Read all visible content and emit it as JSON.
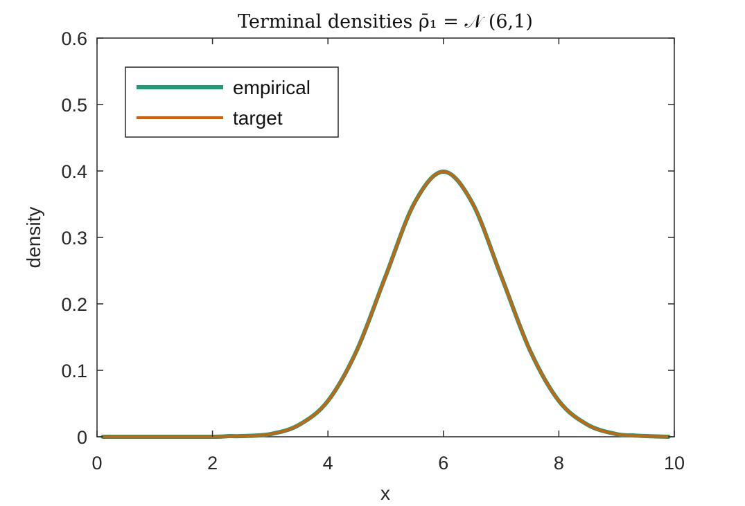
{
  "chart_data": {
    "type": "line",
    "title": "Terminal densities ρ̄₁ = 𝒩 (6,1)",
    "xlabel": "x",
    "ylabel": "density",
    "xlim": [
      0,
      10
    ],
    "ylim": [
      0,
      0.6
    ],
    "xticks": [
      0,
      2,
      4,
      6,
      8,
      10
    ],
    "yticks": [
      0,
      0.1,
      0.2,
      0.3,
      0.4,
      0.5,
      0.6
    ],
    "xtick_labels": [
      "0",
      "2",
      "4",
      "6",
      "8",
      "10"
    ],
    "ytick_labels": [
      "0",
      "0.1",
      "0.2",
      "0.3",
      "0.4",
      "0.5",
      "0.6"
    ],
    "grid": false,
    "legend_position": "top-left",
    "series": [
      {
        "name": "empirical",
        "color": "#1b9e77",
        "x": [
          0.1,
          1.0,
          2.0,
          2.3,
          2.5,
          3.0,
          3.5,
          4.0,
          4.5,
          5.0,
          5.5,
          6.0,
          6.5,
          7.0,
          7.5,
          8.0,
          8.5,
          9.0,
          9.3,
          9.5,
          9.9
        ],
        "y": [
          0.0,
          0.0,
          0.0,
          0.001,
          0.001,
          0.004,
          0.018,
          0.054,
          0.13,
          0.242,
          0.352,
          0.399,
          0.352,
          0.242,
          0.13,
          0.054,
          0.018,
          0.004,
          0.002,
          0.001,
          0.0
        ]
      },
      {
        "name": "target",
        "color": "#d95f02",
        "x": [
          0.1,
          1.0,
          2.0,
          2.5,
          3.0,
          3.5,
          4.0,
          4.5,
          5.0,
          5.5,
          6.0,
          6.5,
          7.0,
          7.5,
          8.0,
          8.5,
          9.0,
          9.5,
          9.9
        ],
        "y": [
          0.0,
          0.0,
          0.0,
          0.001,
          0.004,
          0.018,
          0.054,
          0.13,
          0.242,
          0.352,
          0.399,
          0.352,
          0.242,
          0.13,
          0.054,
          0.018,
          0.004,
          0.001,
          0.0
        ]
      }
    ]
  }
}
